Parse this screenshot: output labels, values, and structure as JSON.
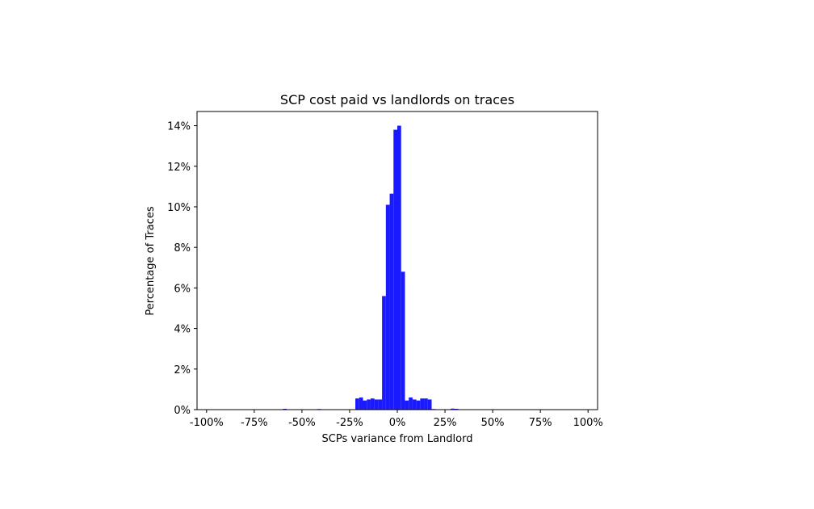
{
  "chart_data": {
    "type": "bar",
    "title": "SCP cost paid vs landlords on traces",
    "xlabel": "SCPs variance from Landlord",
    "ylabel": "Percentage of Traces",
    "xlim": [
      -105,
      105
    ],
    "ylim": [
      0,
      14.7
    ],
    "bar_color": "#1a1aff",
    "x_ticks": [
      {
        "value": -100,
        "label": "-100%"
      },
      {
        "value": -75,
        "label": "-75%"
      },
      {
        "value": -50,
        "label": "-50%"
      },
      {
        "value": -25,
        "label": "-25%"
      },
      {
        "value": 0,
        "label": "0%"
      },
      {
        "value": 25,
        "label": "25%"
      },
      {
        "value": 50,
        "label": "50%"
      },
      {
        "value": 75,
        "label": "75%"
      },
      {
        "value": 100,
        "label": "100%"
      }
    ],
    "y_ticks": [
      {
        "value": 0,
        "label": "0%"
      },
      {
        "value": 2,
        "label": "2%"
      },
      {
        "value": 4,
        "label": "4%"
      },
      {
        "value": 6,
        "label": "6%"
      },
      {
        "value": 8,
        "label": "8%"
      },
      {
        "value": 10,
        "label": "10%"
      },
      {
        "value": 12,
        "label": "12%"
      },
      {
        "value": 14,
        "label": "14%"
      }
    ],
    "bin_width": 2,
    "bins": [
      {
        "x": -60,
        "value": 0.04
      },
      {
        "x": -42,
        "value": 0.03
      },
      {
        "x": -22,
        "value": 0.55
      },
      {
        "x": -20,
        "value": 0.6
      },
      {
        "x": -18,
        "value": 0.45
      },
      {
        "x": -16,
        "value": 0.5
      },
      {
        "x": -14,
        "value": 0.55
      },
      {
        "x": -12,
        "value": 0.5
      },
      {
        "x": -10,
        "value": 0.5
      },
      {
        "x": -8,
        "value": 5.6
      },
      {
        "x": -6,
        "value": 10.1
      },
      {
        "x": -4,
        "value": 10.65
      },
      {
        "x": -2,
        "value": 13.8
      },
      {
        "x": 0,
        "value": 14.0
      },
      {
        "x": 2,
        "value": 6.8
      },
      {
        "x": 4,
        "value": 0.45
      },
      {
        "x": 6,
        "value": 0.6
      },
      {
        "x": 8,
        "value": 0.5
      },
      {
        "x": 10,
        "value": 0.45
      },
      {
        "x": 12,
        "value": 0.55
      },
      {
        "x": 14,
        "value": 0.55
      },
      {
        "x": 16,
        "value": 0.5
      },
      {
        "x": 18,
        "value": 0.03
      },
      {
        "x": 28,
        "value": 0.05
      },
      {
        "x": 30,
        "value": 0.04
      }
    ]
  }
}
